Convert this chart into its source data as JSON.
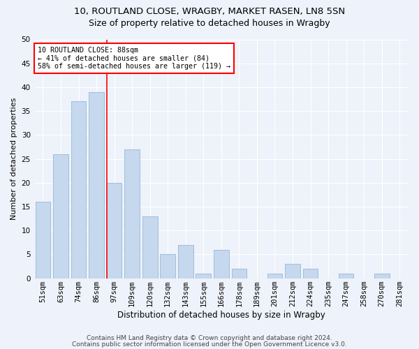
{
  "title1": "10, ROUTLAND CLOSE, WRAGBY, MARKET RASEN, LN8 5SN",
  "title2": "Size of property relative to detached houses in Wragby",
  "xlabel": "Distribution of detached houses by size in Wragby",
  "ylabel": "Number of detached properties",
  "categories": [
    "51sqm",
    "63sqm",
    "74sqm",
    "86sqm",
    "97sqm",
    "109sqm",
    "120sqm",
    "132sqm",
    "143sqm",
    "155sqm",
    "166sqm",
    "178sqm",
    "189sqm",
    "201sqm",
    "212sqm",
    "224sqm",
    "235sqm",
    "247sqm",
    "258sqm",
    "270sqm",
    "281sqm"
  ],
  "values": [
    16,
    26,
    37,
    39,
    20,
    27,
    13,
    5,
    7,
    1,
    6,
    2,
    0,
    1,
    3,
    2,
    0,
    1,
    0,
    1,
    0
  ],
  "bar_color": "#c5d8ed",
  "bar_edge_color": "#a0bedd",
  "vline_x": 3.58,
  "vline_color": "red",
  "annotation_text": "10 ROUTLAND CLOSE: 88sqm\n← 41% of detached houses are smaller (84)\n58% of semi-detached houses are larger (119) →",
  "annotation_box_color": "white",
  "annotation_box_edge": "red",
  "ylim": [
    0,
    50
  ],
  "yticks": [
    0,
    5,
    10,
    15,
    20,
    25,
    30,
    35,
    40,
    45,
    50
  ],
  "footer1": "Contains HM Land Registry data © Crown copyright and database right 2024.",
  "footer2": "Contains public sector information licensed under the Open Government Licence v3.0.",
  "bg_color": "#eef2fa",
  "grid_color": "white",
  "title1_fontsize": 9.5,
  "title2_fontsize": 9,
  "xlabel_fontsize": 8.5,
  "ylabel_fontsize": 8,
  "tick_fontsize": 7.5,
  "footer_fontsize": 6.5
}
